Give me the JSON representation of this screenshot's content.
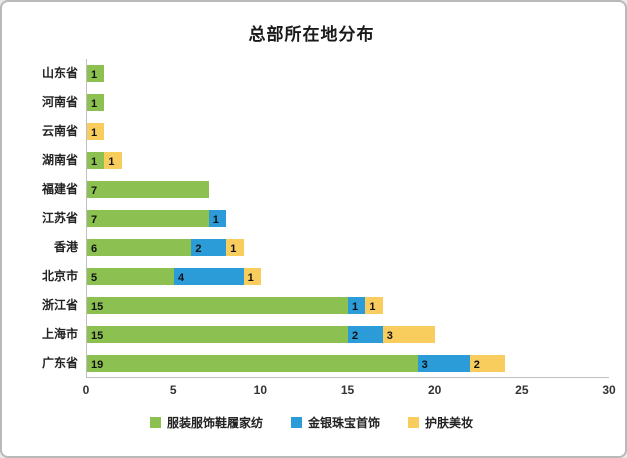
{
  "chart_data": {
    "type": "bar",
    "orientation": "horizontal",
    "stacked": true,
    "title": "总部所在地分布",
    "categories": [
      "山东省",
      "河南省",
      "云南省",
      "湖南省",
      "福建省",
      "江苏省",
      "香港",
      "北京市",
      "浙江省",
      "上海市",
      "广东省"
    ],
    "series": [
      {
        "name": "服装服饰鞋履家纺",
        "color": "#8cc152",
        "values": [
          1,
          1,
          0,
          1,
          7,
          7,
          6,
          5,
          15,
          15,
          19
        ]
      },
      {
        "name": "金银珠宝首饰",
        "color": "#2b9cd8",
        "values": [
          0,
          0,
          0,
          0,
          0,
          1,
          2,
          4,
          1,
          2,
          3
        ]
      },
      {
        "name": "护肤美妆",
        "color": "#f8cd5d",
        "values": [
          0,
          0,
          1,
          1,
          0,
          0,
          1,
          1,
          1,
          3,
          2
        ]
      }
    ],
    "xlabel": "",
    "ylabel": "",
    "xlim": [
      0,
      30
    ],
    "xticks": [
      0,
      5,
      10,
      15,
      20,
      25,
      30
    ],
    "grid": false,
    "legend_position": "bottom",
    "value_labels": "inside-base",
    "axis_color": "#bfbfbf"
  }
}
